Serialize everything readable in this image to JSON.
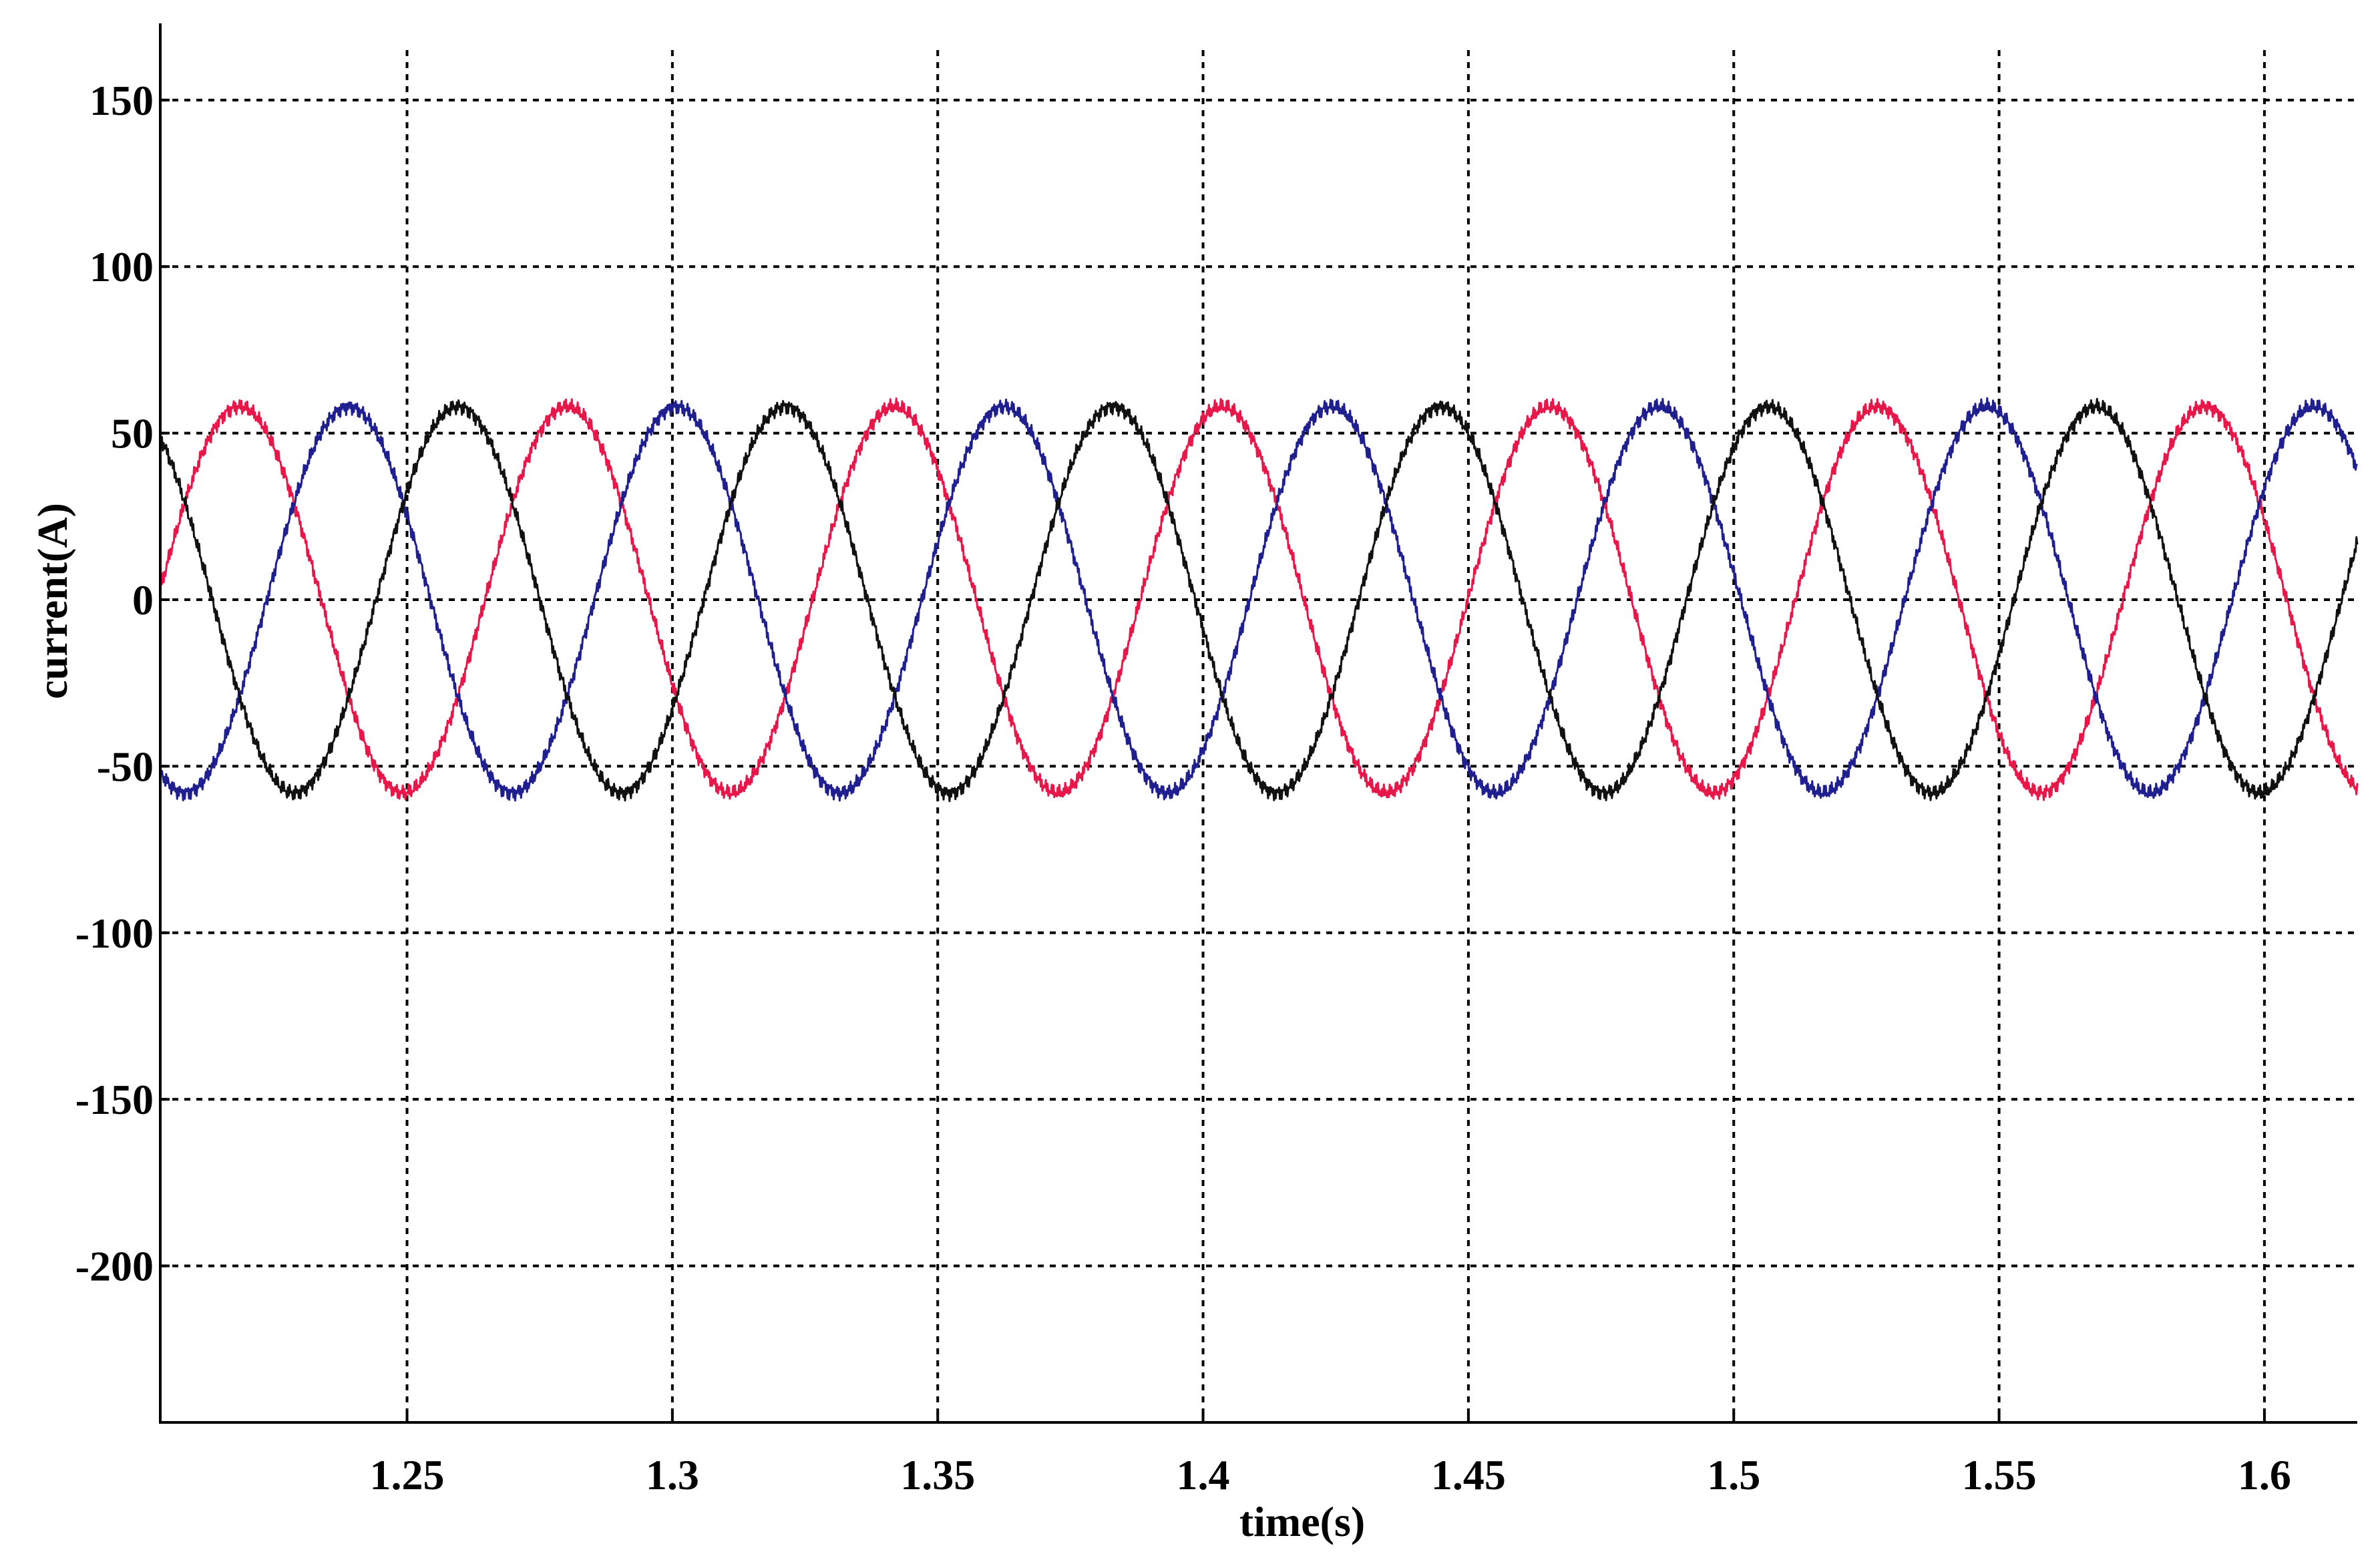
{
  "chart_data": {
    "type": "line",
    "title": "",
    "xlabel": "time(s)",
    "ylabel": "current(A)",
    "xlim": [
      1.2035,
      1.6175
    ],
    "ylim": [
      -247,
      165
    ],
    "x_ticks": [
      1.25,
      1.3,
      1.35,
      1.4,
      1.45,
      1.5,
      1.55,
      1.6
    ],
    "x_tick_labels": [
      "1.25",
      "1.3",
      "1.35",
      "1.4",
      "1.45",
      "1.5",
      "1.55",
      "1.6"
    ],
    "y_ticks": [
      150,
      100,
      50,
      0,
      -50,
      -100,
      -150,
      -200
    ],
    "y_tick_labels": [
      "150",
      "100",
      "50",
      "0",
      "-50",
      "-100",
      "-150",
      "-200"
    ],
    "grid": true,
    "legend": "none",
    "waveform": {
      "amplitude": 58,
      "frequency_hz": 16.2,
      "phase_shift_deg": 120
    },
    "series": [
      {
        "color": "#e8174a",
        "peak_times": [
          1.2184,
          1.2802,
          1.3419,
          1.4036,
          1.4654,
          1.5271,
          1.5888
        ]
      },
      {
        "color": "#1f1f8f",
        "peak_times": [
          1.239,
          1.3007,
          1.3625,
          1.4242,
          1.4859,
          1.5476,
          1.6094
        ]
      },
      {
        "color": "#111111",
        "peak_times": [
          1.2596,
          1.3213,
          1.383,
          1.4448,
          1.5065,
          1.5682
        ]
      }
    ]
  }
}
